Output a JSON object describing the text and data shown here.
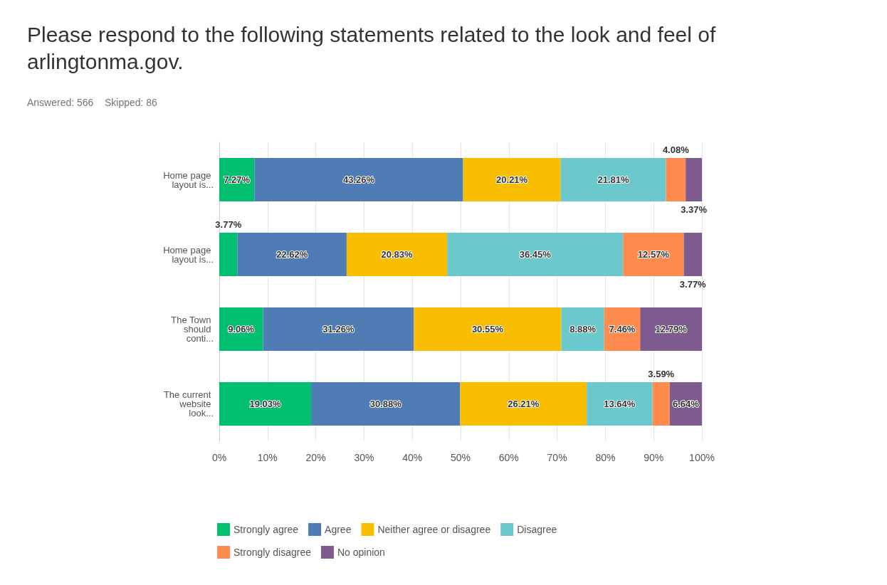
{
  "chart_data": {
    "type": "bar",
    "orientation": "horizontal",
    "stacked": true,
    "title": "Please respond to the following statements related to the look and feel of arlingtonma.gov.",
    "subtitle": "Answered: 566    Skipped: 86",
    "categories": [
      "Home page layout is...",
      "Home page layout is...",
      "The Town should conti...",
      "The current website look..."
    ],
    "series": [
      {
        "name": "Strongly agree",
        "color": "#00bf6f",
        "values": [
          7.27,
          3.77,
          9.06,
          19.03
        ],
        "value_labels": [
          "7.27%",
          "3.77%",
          "9.06%",
          "19.03%"
        ]
      },
      {
        "name": "Agree",
        "color": "#507cb6",
        "values": [
          43.26,
          22.62,
          31.26,
          30.88
        ],
        "value_labels": [
          "43.26%",
          "22.62%",
          "31.26%",
          "30.88%"
        ]
      },
      {
        "name": "Neither agree or disagree",
        "color": "#f9be00",
        "values": [
          20.21,
          20.83,
          30.55,
          26.21
        ],
        "value_labels": [
          "20.21%",
          "20.83%",
          "30.55%",
          "26.21%"
        ]
      },
      {
        "name": "Disagree",
        "color": "#6bc8cd",
        "values": [
          21.81,
          36.45,
          8.88,
          13.64
        ],
        "value_labels": [
          "21.81%",
          "36.45%",
          "8.88%",
          "13.64%"
        ]
      },
      {
        "name": "Strongly disagree",
        "color": "#ff8b4f",
        "values": [
          4.08,
          12.57,
          7.46,
          3.59
        ],
        "value_labels": [
          "4.08%",
          "12.57%",
          "7.46%",
          "3.59%"
        ]
      },
      {
        "name": "No opinion",
        "color": "#7d5b8f",
        "values": [
          3.37,
          3.77,
          12.79,
          6.64
        ],
        "value_labels": [
          "3.37%",
          "3.77%",
          "12.79%",
          "6.64%"
        ]
      }
    ],
    "xlim": [
      0,
      100
    ],
    "xticks": [
      {
        "value": 0,
        "label": "0%"
      },
      {
        "value": 10,
        "label": "10%"
      },
      {
        "value": 20,
        "label": "20%"
      },
      {
        "value": 30,
        "label": "30%"
      },
      {
        "value": 40,
        "label": "40%"
      },
      {
        "value": 50,
        "label": "50%"
      },
      {
        "value": 60,
        "label": "60%"
      },
      {
        "value": 70,
        "label": "70%"
      },
      {
        "value": 80,
        "label": "80%"
      },
      {
        "value": 90,
        "label": "90%"
      },
      {
        "value": 100,
        "label": "100%"
      }
    ],
    "grid": "x",
    "legend": "bottom"
  }
}
